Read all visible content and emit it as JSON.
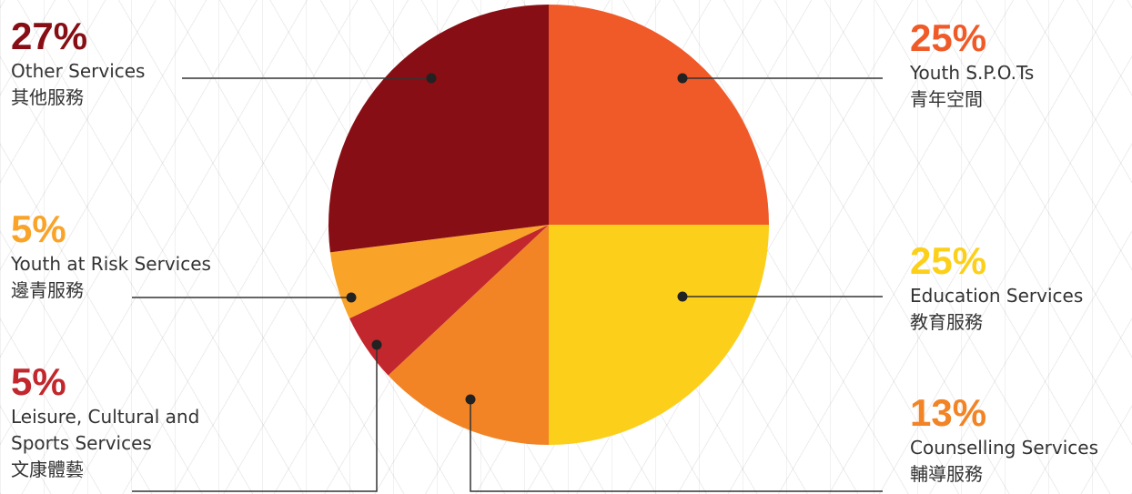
{
  "chart_data": {
    "type": "pie",
    "start_angle_deg": 0,
    "direction": "clockwise",
    "slices": [
      {
        "percent": "25%",
        "value": 25,
        "label_en": "Youth S.P.O.Ts",
        "label_zh": "青年空間",
        "color": "#F05A28"
      },
      {
        "percent": "25%",
        "value": 25,
        "label_en": "Education Services",
        "label_zh": "教育服務",
        "color": "#FCD01A"
      },
      {
        "percent": "13%",
        "value": 13,
        "label_en": "Counselling Services",
        "label_zh": "輔導服務",
        "color": "#F28426"
      },
      {
        "percent": "5%",
        "value": 5,
        "label_en": "Leisure, Cultural and Sports Services",
        "label_zh": "文康體藝",
        "color": "#C1272D"
      },
      {
        "percent": "5%",
        "value": 5,
        "label_en": "Youth at Risk Services",
        "label_zh": "邊青服務",
        "color": "#F9A328"
      },
      {
        "percent": "27%",
        "value": 27,
        "label_en": "Other Services",
        "label_zh": "其他服務",
        "color": "#870E14"
      }
    ]
  }
}
